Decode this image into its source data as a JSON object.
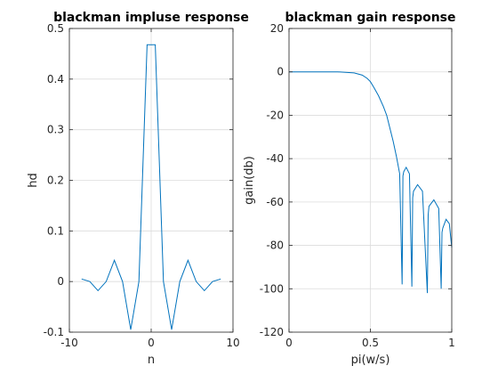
{
  "chart_data": [
    {
      "type": "line",
      "title": "blackman impluse response",
      "xlabel": "n",
      "ylabel": "hd",
      "xlim": [
        -10,
        10
      ],
      "ylim": [
        -0.1,
        0.5
      ],
      "xticks": [
        "-10",
        "0",
        "10"
      ],
      "yticks": [
        "-0.1",
        "0",
        "0.1",
        "0.2",
        "0.3",
        "0.4",
        "0.5"
      ],
      "grid": true,
      "series": [
        {
          "x": [
            -8.5,
            -7.5,
            -6.5,
            -5.5,
            -4.5,
            -3.5,
            -2.5,
            -1.5,
            -0.5,
            0.5,
            1.5,
            2.5,
            3.5,
            4.5,
            5.5,
            6.5,
            7.5,
            8.5
          ],
          "y": [
            0.005,
            0.0,
            -0.018,
            0.0,
            0.042,
            0.0,
            -0.095,
            0.0,
            0.468,
            0.468,
            0.0,
            -0.095,
            0.0,
            0.042,
            0.0,
            -0.018,
            0.0,
            0.005
          ]
        }
      ]
    },
    {
      "type": "line",
      "title": "blackman gain response",
      "xlabel": "pi(w/s)",
      "ylabel": "gain(db)",
      "xlim": [
        0,
        1
      ],
      "ylim": [
        -120,
        20
      ],
      "xticks": [
        "0",
        "0.5",
        "1"
      ],
      "yticks": [
        "-120",
        "-100",
        "-80",
        "-60",
        "-40",
        "-20",
        "0",
        "20"
      ],
      "grid": true,
      "series": [
        {
          "x": [
            0,
            0.1,
            0.2,
            0.3,
            0.4,
            0.45,
            0.48,
            0.5,
            0.52,
            0.55,
            0.58,
            0.6,
            0.62,
            0.64,
            0.66,
            0.68,
            0.695,
            0.7,
            0.705,
            0.72,
            0.74,
            0.755,
            0.76,
            0.765,
            0.79,
            0.82,
            0.85,
            0.855,
            0.86,
            0.89,
            0.92,
            0.935,
            0.94,
            0.945,
            0.965,
            0.985,
            1.0
          ],
          "y": [
            0,
            0,
            0,
            0,
            -0.5,
            -1.5,
            -3,
            -4.5,
            -7,
            -11,
            -16,
            -20,
            -26,
            -32,
            -39,
            -47,
            -98,
            -48,
            -46,
            -44,
            -47,
            -99,
            -58,
            -55,
            -52,
            -55,
            -102,
            -66,
            -62,
            -59,
            -63,
            -100,
            -74,
            -72,
            -68,
            -70,
            -81
          ]
        }
      ]
    }
  ],
  "colors": {
    "series": "#0072bd"
  }
}
